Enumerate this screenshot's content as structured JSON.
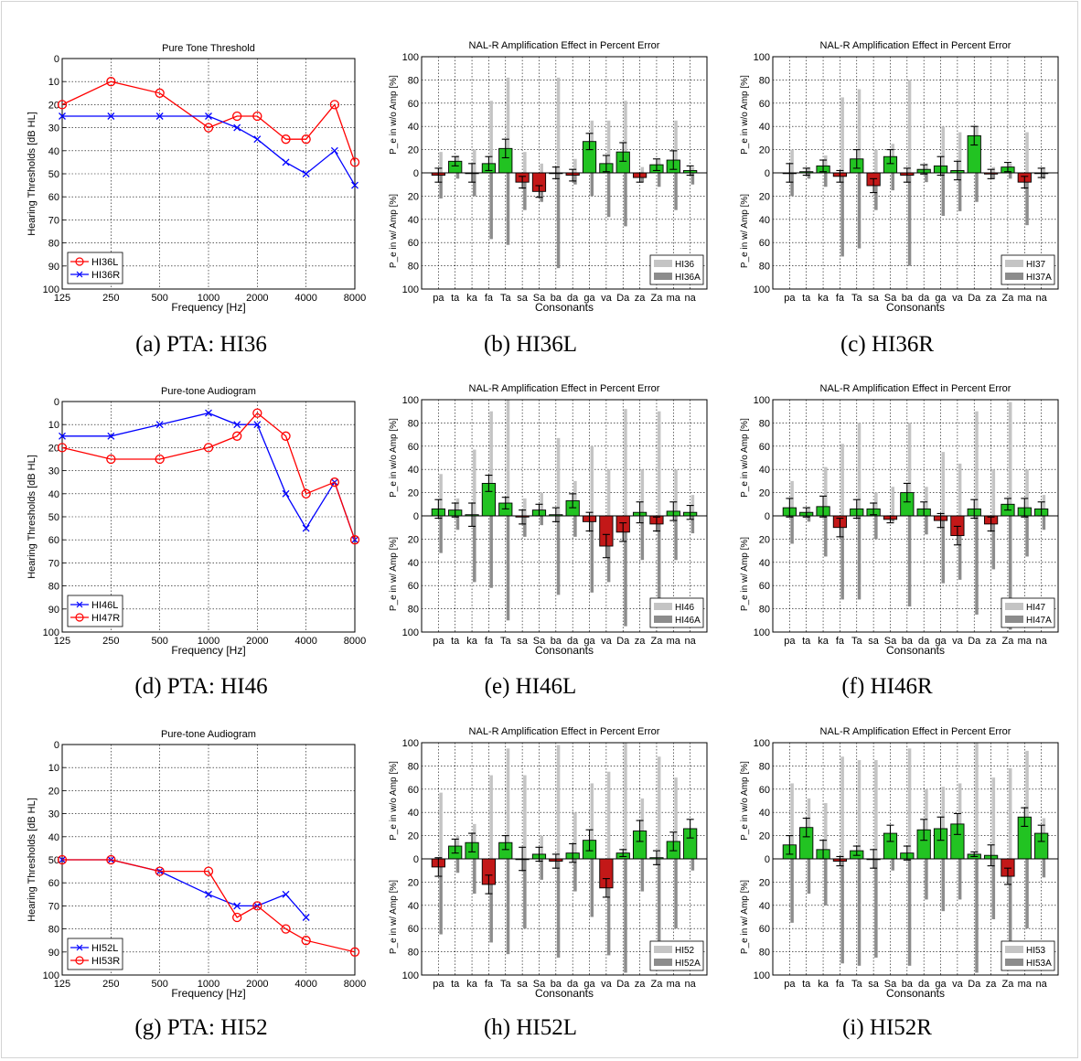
{
  "figure": {
    "pta_xticks": [
      "125",
      "250",
      "500",
      "1000",
      "2000",
      "4000",
      "8000"
    ],
    "pta_xlabel": "Frequency [Hz]",
    "pta_ylabel": "Hearing Thresholds [dB HL]",
    "bar_ylabel_top": "P_e in w/o Amp [%]",
    "bar_ylabel_bottom": "P_e in w/ Amp [%]",
    "bar_xlabel": "Consonants",
    "bar_title": "NAL-R Amplification Effect in Percent Error",
    "consonants": [
      "pa",
      "ta",
      "ka",
      "fa",
      "Ta",
      "sa",
      "Sa",
      "ba",
      "da",
      "ga",
      "va",
      "Da",
      "za",
      "Za",
      "ma",
      "na"
    ]
  },
  "captions": {
    "a": "(a) PTA: HI36",
    "b": "(b) HI36L",
    "c": "(c) HI36R",
    "d": "(d) PTA: HI46",
    "e": "(e) HI46L",
    "f": "(f) HI46R",
    "g": "(g) PTA: HI52",
    "h": "(h) HI52L",
    "i": "(i) HI52R"
  },
  "chart_data": [
    {
      "id": "a",
      "type": "line",
      "title": "Pure Tone Threshold",
      "xlabel": "Frequency [Hz]",
      "ylabel": "Hearing Thresholds [dB HL]",
      "x_categories": [
        "125",
        "250",
        "500",
        "1000",
        "2000",
        "4000",
        "8000"
      ],
      "ylim": [
        100,
        0
      ],
      "yticks": [
        0,
        10,
        20,
        30,
        40,
        50,
        60,
        70,
        80,
        90,
        100
      ],
      "legend": "bottom-left",
      "grid": true,
      "series": [
        {
          "name": "HI36L",
          "color": "#ff0000",
          "marker": "circle",
          "x": [
            125,
            250,
            500,
            1000,
            1500,
            2000,
            3000,
            4000,
            6000,
            8000
          ],
          "y": [
            20,
            10,
            15,
            30,
            25,
            25,
            35,
            35,
            20,
            45
          ]
        },
        {
          "name": "HI36R",
          "color": "#0000ff",
          "marker": "x",
          "x": [
            125,
            250,
            500,
            1000,
            1500,
            2000,
            3000,
            4000,
            6000,
            8000
          ],
          "y": [
            25,
            25,
            25,
            25,
            30,
            35,
            45,
            50,
            40,
            55
          ]
        }
      ]
    },
    {
      "id": "d",
      "type": "line",
      "title": "Pure-tone Audiogram",
      "xlabel": "Frequency [Hz]",
      "ylabel": "Hearing Thresholds [dB HL]",
      "x_categories": [
        "125",
        "250",
        "500",
        "1000",
        "2000",
        "4000",
        "8000"
      ],
      "ylim": [
        100,
        0
      ],
      "yticks": [
        0,
        10,
        20,
        30,
        40,
        50,
        60,
        70,
        80,
        90,
        100
      ],
      "legend": "bottom-left",
      "grid": true,
      "series": [
        {
          "name": "HI46L",
          "color": "#0000ff",
          "marker": "x",
          "x": [
            125,
            250,
            500,
            1000,
            1500,
            2000,
            3000,
            4000,
            6000,
            8000
          ],
          "y": [
            15,
            15,
            10,
            5,
            10,
            10,
            40,
            55,
            35,
            60
          ]
        },
        {
          "name": "HI47R",
          "color": "#ff0000",
          "marker": "circle",
          "x": [
            125,
            250,
            500,
            1000,
            1500,
            2000,
            3000,
            4000,
            6000,
            8000
          ],
          "y": [
            20,
            25,
            25,
            20,
            15,
            5,
            15,
            40,
            35,
            60
          ]
        }
      ]
    },
    {
      "id": "g",
      "type": "line",
      "title": "Pure-tone Audiogram",
      "xlabel": "Frequency [Hz]",
      "ylabel": "Hearing Thresholds [dB HL]",
      "x_categories": [
        "125",
        "250",
        "500",
        "1000",
        "2000",
        "4000",
        "8000"
      ],
      "ylim": [
        100,
        0
      ],
      "yticks": [
        0,
        10,
        20,
        30,
        40,
        50,
        60,
        70,
        80,
        90,
        100
      ],
      "legend": "bottom-left",
      "grid": true,
      "series": [
        {
          "name": "HI52L",
          "color": "#0000ff",
          "marker": "x",
          "x": [
            125,
            250,
            500,
            1000,
            1500,
            2000,
            3000,
            4000
          ],
          "y": [
            50,
            50,
            55,
            65,
            70,
            70,
            65,
            75
          ]
        },
        {
          "name": "HI53R",
          "color": "#ff0000",
          "marker": "circle",
          "x": [
            125,
            250,
            500,
            1000,
            1500,
            2000,
            3000,
            4000,
            8000
          ],
          "y": [
            50,
            50,
            55,
            55,
            75,
            70,
            80,
            85,
            90
          ]
        }
      ]
    },
    {
      "id": "b",
      "type": "bar",
      "title": "NAL-R Amplification Effect in Percent Error",
      "xlabel": "Consonants",
      "ylim": [
        -100,
        100
      ],
      "legend": "bottom-right",
      "grid": true,
      "categories": [
        "pa",
        "ta",
        "ka",
        "fa",
        "Ta",
        "sa",
        "Sa",
        "ba",
        "da",
        "ga",
        "va",
        "Da",
        "za",
        "Za",
        "ma",
        "na"
      ],
      "legend_labels": [
        "HI36",
        "HI36A"
      ],
      "without_amp": [
        18,
        15,
        20,
        62,
        82,
        18,
        8,
        82,
        12,
        45,
        45,
        62,
        5,
        12,
        45,
        5
      ],
      "with_amp": [
        22,
        5,
        20,
        57,
        62,
        32,
        25,
        82,
        10,
        20,
        38,
        46,
        8,
        12,
        32,
        10
      ],
      "difference": [
        -2,
        10,
        0,
        8,
        21,
        -8,
        -16,
        0,
        -2,
        27,
        8,
        18,
        -4,
        7,
        11,
        2
      ],
      "error": [
        6,
        4,
        8,
        6,
        8,
        5,
        5,
        5,
        5,
        7,
        7,
        8,
        4,
        5,
        8,
        4
      ]
    },
    {
      "id": "c",
      "type": "bar",
      "title": "NAL-R Amplification Effect in Percent Error",
      "xlabel": "Consonants",
      "ylim": [
        -100,
        100
      ],
      "legend": "bottom-right",
      "grid": true,
      "categories": [
        "pa",
        "ta",
        "ka",
        "fa",
        "Ta",
        "sa",
        "Sa",
        "ba",
        "da",
        "ga",
        "va",
        "Da",
        "za",
        "Za",
        "ma",
        "na"
      ],
      "legend_labels": [
        "HI37",
        "HI37A"
      ],
      "without_amp": [
        20,
        5,
        15,
        65,
        72,
        20,
        25,
        80,
        8,
        40,
        35,
        40,
        5,
        8,
        35,
        5
      ],
      "with_amp": [
        20,
        5,
        12,
        72,
        65,
        32,
        15,
        80,
        8,
        37,
        33,
        25,
        5,
        5,
        45,
        5
      ],
      "difference": [
        0,
        1,
        6,
        -3,
        12,
        -11,
        14,
        -2,
        3,
        6,
        2,
        32,
        -1,
        5,
        -8,
        0
      ],
      "error": [
        8,
        3,
        5,
        5,
        8,
        6,
        6,
        6,
        4,
        8,
        8,
        8,
        4,
        4,
        5,
        4
      ]
    },
    {
      "id": "e",
      "type": "bar",
      "title": "NAL-R Amplification Effect in Percent Error",
      "xlabel": "Consonants",
      "ylim": [
        -100,
        100
      ],
      "legend": "bottom-right",
      "grid": true,
      "categories": [
        "pa",
        "ta",
        "ka",
        "fa",
        "Ta",
        "sa",
        "Sa",
        "ba",
        "da",
        "ga",
        "va",
        "Da",
        "za",
        "Za",
        "ma",
        "na"
      ],
      "legend_labels": [
        "HI46",
        "HI46A"
      ],
      "without_amp": [
        36,
        15,
        57,
        90,
        100,
        15,
        20,
        67,
        30,
        60,
        40,
        92,
        40,
        90,
        40,
        18
      ],
      "with_amp": [
        32,
        12,
        57,
        62,
        90,
        18,
        8,
        68,
        18,
        66,
        57,
        95,
        38,
        90,
        38,
        15
      ],
      "difference": [
        6,
        5,
        1,
        28,
        11,
        -1,
        5,
        1,
        13,
        -5,
        -26,
        -14,
        3,
        -7,
        4,
        3
      ],
      "error": [
        8,
        6,
        10,
        7,
        5,
        6,
        5,
        6,
        6,
        8,
        10,
        8,
        9,
        6,
        8,
        6
      ]
    },
    {
      "id": "f",
      "type": "bar",
      "title": "NAL-R Amplification Effect in Percent Error",
      "xlabel": "Consonants",
      "ylim": [
        -100,
        100
      ],
      "legend": "bottom-right",
      "grid": true,
      "categories": [
        "pa",
        "ta",
        "ka",
        "fa",
        "Ta",
        "sa",
        "Sa",
        "ba",
        "da",
        "ga",
        "va",
        "Da",
        "za",
        "Za",
        "ma",
        "na"
      ],
      "legend_labels": [
        "HI47",
        "HI47A"
      ],
      "without_amp": [
        30,
        8,
        42,
        62,
        80,
        20,
        25,
        80,
        25,
        55,
        45,
        90,
        40,
        98,
        40,
        18
      ],
      "with_amp": [
        24,
        5,
        35,
        72,
        72,
        20,
        5,
        78,
        16,
        58,
        55,
        85,
        46,
        98,
        35,
        12
      ],
      "difference": [
        7,
        3,
        8,
        -10,
        6,
        6,
        -3,
        20,
        6,
        -4,
        -17,
        6,
        -7,
        10,
        7,
        6
      ],
      "error": [
        8,
        4,
        9,
        8,
        8,
        5,
        3,
        8,
        6,
        6,
        8,
        8,
        6,
        5,
        8,
        6
      ]
    },
    {
      "id": "h",
      "type": "bar",
      "title": "NAL-R Amplification Effect in Percent Error",
      "xlabel": "Consonants",
      "ylim": [
        -100,
        100
      ],
      "legend": "bottom-right",
      "grid": true,
      "categories": [
        "pa",
        "ta",
        "ka",
        "fa",
        "Ta",
        "sa",
        "Sa",
        "ba",
        "da",
        "ga",
        "va",
        "Da",
        "za",
        "Za",
        "ma",
        "na"
      ],
      "legend_labels": [
        "HI52",
        "HI52A"
      ],
      "without_amp": [
        57,
        20,
        30,
        72,
        95,
        72,
        20,
        98,
        40,
        65,
        75,
        100,
        52,
        88,
        70,
        25
      ],
      "with_amp": [
        65,
        12,
        30,
        72,
        82,
        60,
        18,
        85,
        28,
        50,
        83,
        98,
        28,
        92,
        60,
        10
      ],
      "difference": [
        -7,
        11,
        14,
        -22,
        14,
        0,
        4,
        -2,
        5,
        16,
        -25,
        5,
        24,
        1,
        15,
        26
      ],
      "error": [
        8,
        6,
        8,
        8,
        6,
        10,
        6,
        6,
        8,
        9,
        8,
        3,
        9,
        6,
        8,
        8
      ]
    },
    {
      "id": "i",
      "type": "bar",
      "title": "NAL-R Amplification Effect in Percent Error",
      "xlabel": "Consonants",
      "ylim": [
        -100,
        100
      ],
      "legend": "bottom-right",
      "grid": true,
      "categories": [
        "pa",
        "ta",
        "ka",
        "fa",
        "Ta",
        "sa",
        "Sa",
        "ba",
        "da",
        "ga",
        "va",
        "Da",
        "za",
        "Za",
        "ma",
        "na"
      ],
      "legend_labels": [
        "HI53",
        "HI53A"
      ],
      "without_amp": [
        65,
        52,
        48,
        88,
        85,
        85,
        22,
        95,
        60,
        62,
        65,
        100,
        70,
        78,
        93,
        35
      ],
      "with_amp": [
        55,
        30,
        40,
        90,
        92,
        85,
        10,
        92,
        35,
        45,
        35,
        98,
        52,
        75,
        60,
        16
      ],
      "difference": [
        12,
        27,
        8,
        -2,
        7,
        0,
        22,
        5,
        25,
        26,
        30,
        4,
        3,
        -15,
        36,
        22
      ],
      "error": [
        8,
        8,
        8,
        4,
        4,
        8,
        7,
        6,
        9,
        10,
        9,
        2,
        9,
        7,
        8,
        7
      ]
    }
  ]
}
